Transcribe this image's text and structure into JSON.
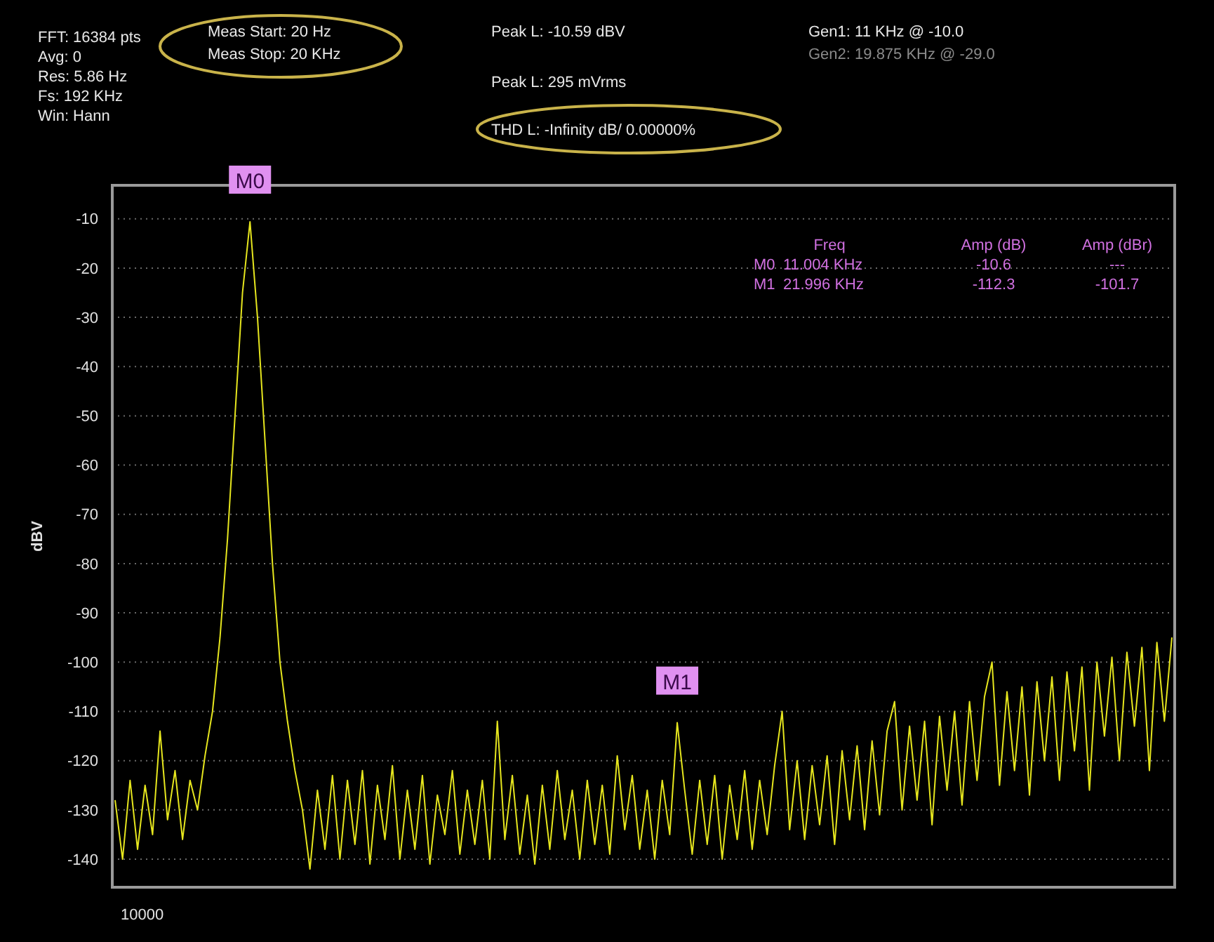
{
  "chart_data": {
    "type": "line",
    "ylabel": "dBV",
    "grid": "y",
    "marker": "none",
    "line_style": "solid",
    "ylim": [
      -145.7,
      -3.2
    ],
    "categories": [
      null,
      null,
      null,
      null,
      null,
      null,
      null,
      null,
      null,
      null,
      null,
      null,
      null,
      null,
      null,
      null,
      null,
      null,
      null,
      null,
      null,
      null,
      null,
      null,
      null,
      null,
      null,
      null,
      null,
      null,
      null,
      null,
      null,
      null,
      null,
      null,
      null,
      null,
      null,
      null,
      null,
      null,
      null,
      null,
      null,
      null,
      null,
      null,
      null,
      null,
      null,
      null,
      null,
      null,
      null,
      null,
      null,
      null,
      null,
      null,
      null,
      null,
      null,
      null,
      null,
      null,
      null,
      null,
      null,
      null,
      null,
      null,
      null,
      null,
      null,
      null,
      null,
      null,
      null,
      null,
      null,
      null,
      null,
      null,
      null,
      null,
      null,
      null,
      null,
      null,
      null,
      null,
      null,
      null,
      null,
      null,
      null,
      null,
      null,
      null,
      null,
      null,
      null,
      null,
      null,
      null,
      null,
      null,
      null,
      null,
      null,
      null,
      null,
      null,
      null,
      null,
      null,
      null,
      null,
      null,
      null,
      null,
      null,
      null,
      null,
      null,
      null,
      null,
      null,
      null,
      null,
      null,
      null,
      null,
      null,
      null,
      null,
      null,
      null,
      null,
      null,
      null
    ],
    "yticks": [
      -10,
      -20,
      -30,
      -40,
      -50,
      -60,
      -70,
      -80,
      -90,
      -100,
      -110,
      -120,
      -130,
      -140
    ],
    "series": [
      {
        "color": "#e6e61e",
        "values": [
          -128,
          -140,
          -124,
          -138,
          -125,
          -135,
          -114,
          -132,
          -122,
          -136,
          -124,
          -130,
          -119,
          -110,
          -95,
          -75,
          -50,
          -25,
          -10.6,
          -30,
          -55,
          -80,
          -100,
          -112,
          -122,
          -130,
          -142,
          -126,
          -138,
          -123,
          -140,
          -124,
          -137,
          -122,
          -141,
          -125,
          -136,
          -121,
          -140,
          -126,
          -138,
          -123,
          -141,
          -127,
          -135,
          -122,
          -139,
          -126,
          -137,
          -124,
          -140,
          -112,
          -136,
          -123,
          -139,
          -127,
          -141,
          -125,
          -138,
          -122,
          -136,
          -126,
          -140,
          -124,
          -137,
          -125,
          -139,
          -119,
          -134,
          -123,
          -138,
          -126,
          -140,
          -124,
          -135,
          -112.3,
          -126,
          -139,
          -124,
          -137,
          -123,
          -140,
          -125,
          -136,
          -122,
          -138,
          -124,
          -135,
          -121,
          -110,
          -134,
          -120,
          -136,
          -121,
          -133,
          -119,
          -137,
          -118,
          -132,
          -117,
          -134,
          -116,
          -131,
          -114,
          -108,
          -130,
          -113,
          -128,
          -112,
          -133,
          -111,
          -126,
          -110,
          -129,
          -108,
          -124,
          -107,
          -100,
          -125,
          -106,
          -122,
          -105,
          -127,
          -104,
          -120,
          -103,
          -124,
          -102,
          -118,
          -101,
          -126,
          -100,
          -115,
          -99,
          -120,
          -98,
          -113,
          -97,
          -122,
          -96,
          -112,
          -95
        ]
      }
    ],
    "annotations": [
      "FFT: 16384 pts",
      "Avg: 0",
      "Res: 5.86 Hz",
      "Fs: 192 KHz",
      "Win: Hann",
      "Meas Start: 20 Hz",
      "Meas Stop: 20 KHz",
      "Peak L: -10.59 dBV",
      "Peak L: 295 mVrms",
      "THD L: -Infinity dB/ 0.00000%",
      "Gen1: 11 KHz @ -10.0",
      "Gen2: 19.875 KHz @ -29.0",
      "10000",
      "Freq",
      "Amp (dB)",
      "Amp (dBr)",
      "M0",
      "11.004 KHz",
      "-10.6",
      "---",
      "M1",
      "21.996 KHz",
      "-112.3",
      "-101.7",
      {
        "text": "M0",
        "y": -10.6
      },
      {
        "text": "M1",
        "y": -112.3
      }
    ]
  }
}
